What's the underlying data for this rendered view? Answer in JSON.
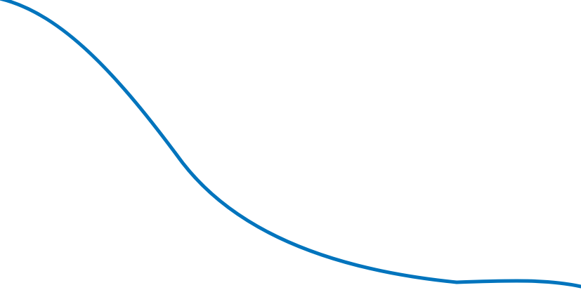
{
  "decoration": {
    "shape": "wave-curve",
    "stroke_color": "#0074BD",
    "background_color": "#FFFFFF"
  }
}
